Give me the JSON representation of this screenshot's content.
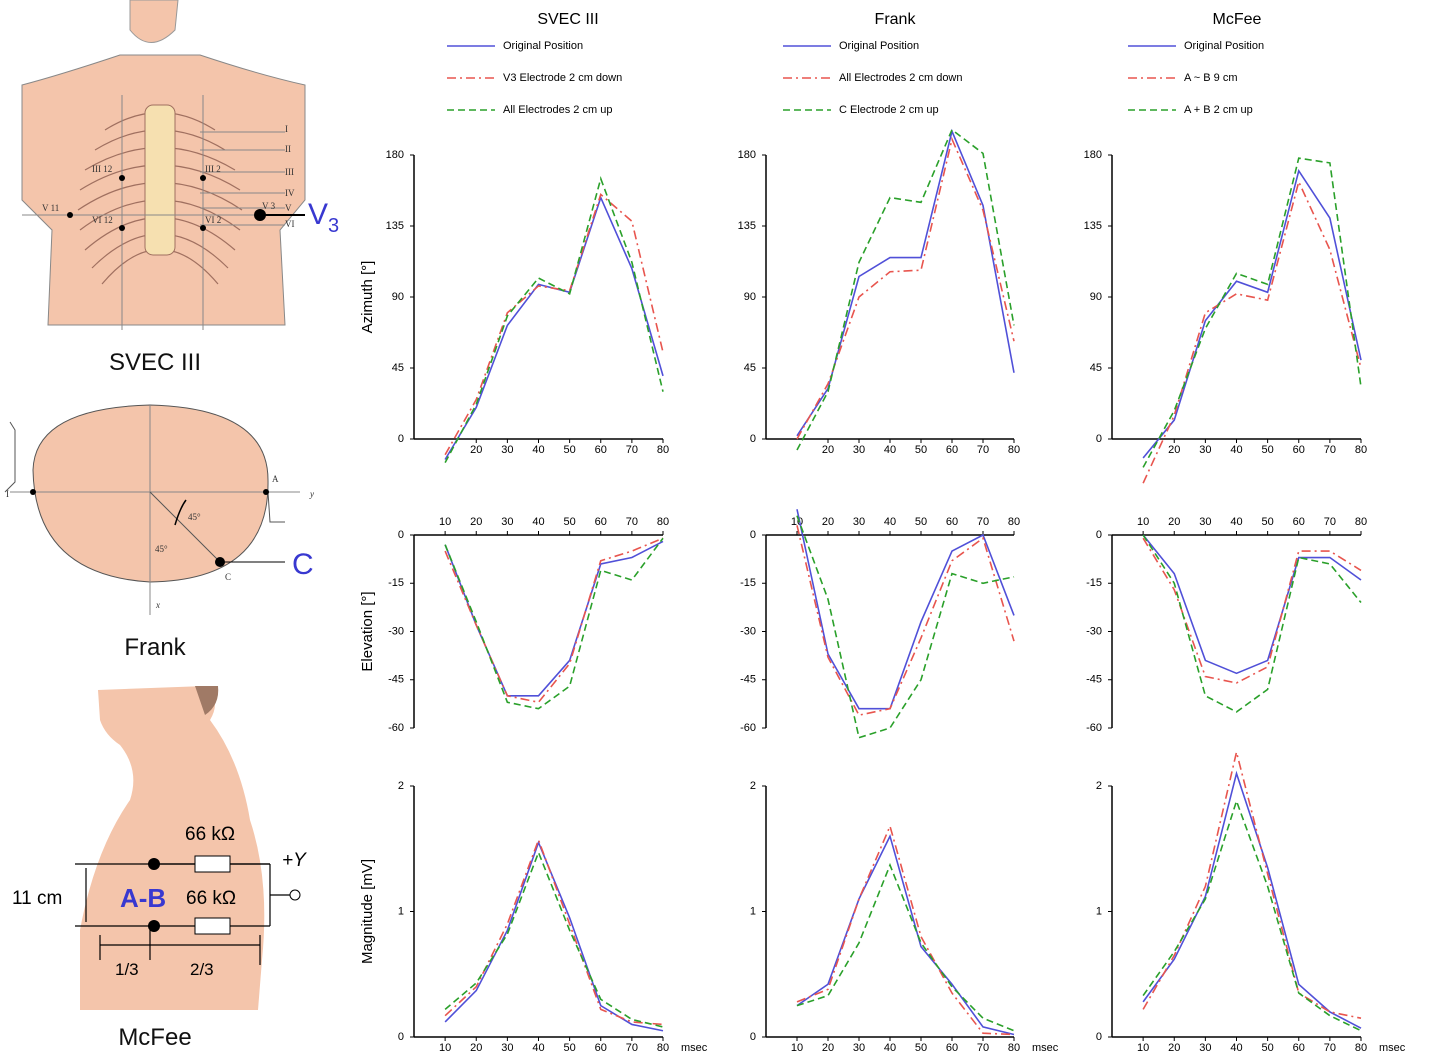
{
  "diagrams": {
    "svec": {
      "title": "SVEC III",
      "electrode": "V",
      "electrode_sub": "3",
      "levels": [
        "I",
        "II",
        "III",
        "IV",
        "V",
        "VI"
      ],
      "points": [
        "III 2",
        "III 12",
        "V 11",
        "V 3",
        "VI 2",
        "VI 12"
      ]
    },
    "frank": {
      "title": "Frank",
      "electrode": "C",
      "labels": [
        "I",
        "A",
        "C",
        "y",
        "x",
        "45°",
        "45°"
      ]
    },
    "mcfee": {
      "title": "McFee",
      "resistor_top": "66 kΩ",
      "resistor_bottom": "66 kΩ",
      "output": "+Y",
      "height": "11 cm",
      "electrodes": "A-B",
      "left_fraction": "1/3",
      "right_fraction": "2/3"
    }
  },
  "chart_data": [
    {
      "type": "line",
      "title": "SVEC III",
      "ylabel": "Azimuth [°]",
      "x": [
        10,
        20,
        30,
        40,
        50,
        60,
        70,
        80
      ],
      "xlim": [
        0,
        80
      ],
      "xticks": [
        20,
        30,
        40,
        50,
        60,
        70,
        80
      ],
      "ylim": [
        0,
        180
      ],
      "yticks": [
        0,
        45,
        90,
        135,
        180
      ],
      "series": [
        {
          "name": "Original Position",
          "color": "#5050d8",
          "style": "solid",
          "values": [
            -13,
            20,
            72,
            98,
            93,
            153,
            108,
            40
          ]
        },
        {
          "name": "V3 Electrode 2 cm down",
          "color": "#e8554e",
          "style": "dashdot",
          "values": [
            -10,
            25,
            80,
            97,
            94,
            155,
            138,
            55
          ]
        },
        {
          "name": "All Electrodes 2 cm up",
          "color": "#2aa02a",
          "style": "dashed",
          "values": [
            -15,
            22,
            78,
            102,
            92,
            165,
            112,
            30
          ]
        }
      ]
    },
    {
      "type": "line",
      "title": "Frank",
      "x": [
        10,
        20,
        30,
        40,
        50,
        60,
        70,
        80
      ],
      "xlim": [
        0,
        80
      ],
      "xticks": [
        20,
        30,
        40,
        50,
        60,
        70,
        80
      ],
      "ylim": [
        0,
        180
      ],
      "yticks": [
        0,
        45,
        90,
        135,
        180
      ],
      "series": [
        {
          "name": "Original Position",
          "color": "#5050d8",
          "style": "solid",
          "values": [
            2,
            32,
            103,
            115,
            115,
            195,
            148,
            42
          ]
        },
        {
          "name": "All Electrodes 2 cm down",
          "color": "#e8554e",
          "style": "dashdot",
          "values": [
            0,
            35,
            90,
            106,
            107,
            190,
            145,
            62
          ]
        },
        {
          "name": "C Electrode 2 cm up",
          "color": "#2aa02a",
          "style": "dashed",
          "values": [
            -7,
            30,
            112,
            153,
            150,
            196,
            181,
            72
          ]
        }
      ]
    },
    {
      "type": "line",
      "title": "McFee",
      "x": [
        10,
        20,
        30,
        40,
        50,
        60,
        70,
        80
      ],
      "xlim": [
        0,
        80
      ],
      "xticks": [
        20,
        30,
        40,
        50,
        60,
        70,
        80
      ],
      "ylim": [
        0,
        180
      ],
      "yticks": [
        0,
        45,
        90,
        135,
        180
      ],
      "series": [
        {
          "name": "Original Position",
          "color": "#5050d8",
          "style": "solid",
          "values": [
            -12,
            12,
            75,
            100,
            93,
            170,
            140,
            50
          ]
        },
        {
          "name": "A ~ B   9 cm",
          "color": "#e8554e",
          "style": "dashdot",
          "values": [
            -28,
            15,
            80,
            92,
            88,
            163,
            120,
            45
          ]
        },
        {
          "name": "A + B   2 cm up",
          "color": "#2aa02a",
          "style": "dashed",
          "values": [
            -18,
            18,
            70,
            105,
            98,
            178,
            175,
            33
          ]
        }
      ]
    },
    {
      "type": "line",
      "ylabel": "Elevation [°]",
      "xaxis": "top",
      "x": [
        10,
        20,
        30,
        40,
        50,
        60,
        70,
        80
      ],
      "xlim": [
        0,
        80
      ],
      "xticks": [
        10,
        20,
        30,
        40,
        50,
        60,
        70,
        80
      ],
      "ylim": [
        -60,
        0
      ],
      "yticks": [
        0,
        -15,
        -30,
        -45,
        -60
      ],
      "series": [
        {
          "color": "#5050d8",
          "style": "solid",
          "values": [
            -3,
            -28,
            -50,
            -50,
            -39,
            -9,
            -7,
            -2
          ]
        },
        {
          "color": "#e8554e",
          "style": "dashdot",
          "values": [
            -5,
            -28,
            -50,
            -52,
            -40,
            -8,
            -5,
            -1
          ]
        },
        {
          "color": "#2aa02a",
          "style": "dashed",
          "values": [
            -3,
            -27,
            -52,
            -54,
            -47,
            -11,
            -14,
            -1
          ]
        }
      ]
    },
    {
      "type": "line",
      "xaxis": "top",
      "x": [
        10,
        20,
        30,
        40,
        50,
        60,
        70,
        80
      ],
      "xlim": [
        0,
        80
      ],
      "xticks": [
        10,
        20,
        30,
        40,
        50,
        60,
        70,
        80
      ],
      "ylim": [
        -60,
        0
      ],
      "yticks": [
        0,
        -15,
        -30,
        -45,
        -60
      ],
      "series": [
        {
          "color": "#5050d8",
          "style": "solid",
          "values": [
            8,
            -37,
            -54,
            -54,
            -27,
            -5,
            0,
            -25
          ]
        },
        {
          "color": "#e8554e",
          "style": "dashdot",
          "values": [
            3,
            -38,
            -56,
            -54,
            -32,
            -8,
            -1,
            -33
          ]
        },
        {
          "color": "#2aa02a",
          "style": "dashed",
          "values": [
            6,
            -20,
            -63,
            -60,
            -45,
            -12,
            -15,
            -13
          ]
        }
      ]
    },
    {
      "type": "line",
      "xaxis": "top",
      "x": [
        10,
        20,
        30,
        40,
        50,
        60,
        70,
        80
      ],
      "xlim": [
        0,
        80
      ],
      "xticks": [
        10,
        20,
        30,
        40,
        50,
        60,
        70,
        80
      ],
      "ylim": [
        -60,
        0
      ],
      "yticks": [
        0,
        -15,
        -30,
        -45,
        -60
      ],
      "series": [
        {
          "color": "#5050d8",
          "style": "solid",
          "values": [
            0,
            -12,
            -39,
            -43,
            -39,
            -7,
            -7,
            -14
          ]
        },
        {
          "color": "#e8554e",
          "style": "dashdot",
          "values": [
            -1,
            -17,
            -44,
            -46,
            -41,
            -5,
            -5,
            -11
          ]
        },
        {
          "color": "#2aa02a",
          "style": "dashed",
          "values": [
            0,
            -15,
            -50,
            -55,
            -48,
            -7,
            -9,
            -21
          ]
        }
      ]
    },
    {
      "type": "line",
      "ylabel": "Magnitude [mV]",
      "xlabel": "msec",
      "x": [
        10,
        20,
        30,
        40,
        50,
        60,
        70,
        80
      ],
      "xlim": [
        0,
        80
      ],
      "xticks": [
        10,
        20,
        30,
        40,
        50,
        60,
        70,
        80
      ],
      "ylim": [
        0,
        2
      ],
      "yticks": [
        0,
        1,
        2
      ],
      "series": [
        {
          "color": "#5050d8",
          "style": "solid",
          "values": [
            0.12,
            0.37,
            0.85,
            1.55,
            0.95,
            0.25,
            0.1,
            0.05
          ]
        },
        {
          "color": "#e8554e",
          "style": "dashdot",
          "values": [
            0.17,
            0.4,
            0.9,
            1.57,
            0.9,
            0.22,
            0.12,
            0.1
          ]
        },
        {
          "color": "#2aa02a",
          "style": "dashed",
          "values": [
            0.22,
            0.43,
            0.82,
            1.47,
            0.85,
            0.3,
            0.14,
            0.08
          ]
        }
      ]
    },
    {
      "type": "line",
      "xlabel": "msec",
      "x": [
        10,
        20,
        30,
        40,
        50,
        60,
        70,
        80
      ],
      "xlim": [
        0,
        80
      ],
      "xticks": [
        10,
        20,
        30,
        40,
        50,
        60,
        70,
        80
      ],
      "ylim": [
        0,
        2
      ],
      "yticks": [
        0,
        1,
        2
      ],
      "series": [
        {
          "color": "#5050d8",
          "style": "solid",
          "values": [
            0.25,
            0.42,
            1.1,
            1.6,
            0.72,
            0.42,
            0.08,
            0.02
          ]
        },
        {
          "color": "#e8554e",
          "style": "dashdot",
          "values": [
            0.28,
            0.38,
            1.1,
            1.68,
            0.8,
            0.35,
            0.03,
            0.02
          ]
        },
        {
          "color": "#2aa02a",
          "style": "dashed",
          "values": [
            0.25,
            0.33,
            0.75,
            1.37,
            0.75,
            0.4,
            0.15,
            0.05
          ]
        }
      ]
    },
    {
      "type": "line",
      "xlabel": "msec",
      "x": [
        10,
        20,
        30,
        40,
        50,
        60,
        70,
        80
      ],
      "xlim": [
        0,
        80
      ],
      "xticks": [
        10,
        20,
        30,
        40,
        50,
        60,
        70,
        80
      ],
      "ylim": [
        0,
        2
      ],
      "yticks": [
        0,
        1,
        2
      ],
      "series": [
        {
          "color": "#5050d8",
          "style": "solid",
          "values": [
            0.28,
            0.62,
            1.12,
            2.1,
            1.35,
            0.42,
            0.2,
            0.07
          ]
        },
        {
          "color": "#e8554e",
          "style": "dashdot",
          "values": [
            0.22,
            0.65,
            1.2,
            2.27,
            1.3,
            0.35,
            0.2,
            0.15
          ]
        },
        {
          "color": "#2aa02a",
          "style": "dashed",
          "values": [
            0.33,
            0.68,
            1.1,
            1.88,
            1.2,
            0.35,
            0.17,
            0.05
          ]
        }
      ]
    }
  ]
}
